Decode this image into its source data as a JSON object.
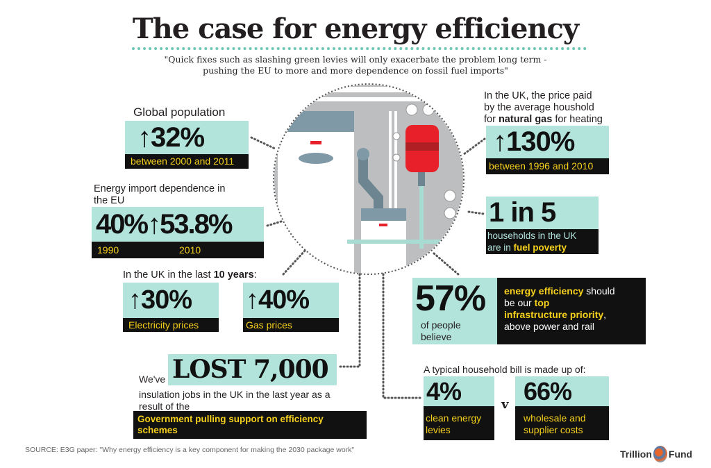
{
  "title": "The case for energy efficiency",
  "quote": [
    "\"Quick fixes such as slashing green levies will only exacerbate the problem long term -",
    "pushing the EU to more and more dependence on fossil fuel imports\""
  ],
  "population": {
    "label": "Global population",
    "value": "↑32%",
    "period": "between 2000 and 2011"
  },
  "gas_price": {
    "label_pre": "In the UK, the price paid",
    "label_mid": "by the average houshold",
    "label_for": "for ",
    "label_bold": "natural gas",
    "label_post": " for heating",
    "value": "↑130%",
    "period": "between 1996 and 2010"
  },
  "import": {
    "label": [
      "Energy import dependence in",
      "the EU"
    ],
    "value_from": "40%",
    "value_to": "↑53.8%",
    "year_from": "1990",
    "year_to": "2010"
  },
  "poverty": {
    "value": "1 in 5",
    "text_line1": "households in the UK",
    "text_pre": "are in ",
    "text_bold": "fuel poverty"
  },
  "ten_years": {
    "label_pre": "In the UK in the last ",
    "label_bold": "10 years",
    "label_post": ":",
    "electricity": {
      "value": "↑30%",
      "label": "Electricity prices"
    },
    "gas": {
      "value": "↑40%",
      "label": "Gas prices"
    }
  },
  "priority": {
    "value": "57%",
    "sub": [
      "of people",
      "believe"
    ],
    "bold1": "energy efficiency",
    "t1": " should",
    "t2": "be our ",
    "bold2": "top",
    "bold3": "infrastructure priority",
    "t3": ",",
    "t4": "above power and rail"
  },
  "jobs": {
    "prefix": "We've",
    "value": "LOST 7,000",
    "text": [
      "insulation jobs in the UK in the last year as a",
      "result of the"
    ],
    "cause": [
      "Government pulling support on efficiency",
      "schemes"
    ]
  },
  "bill": {
    "label": "A typical household bill is made up of:",
    "levies": {
      "value": "4%",
      "label": [
        "clean energy",
        "levies"
      ]
    },
    "versus": "v",
    "wholesale": {
      "value": "66%",
      "label": [
        "wholesale and",
        "supplier costs"
      ]
    }
  },
  "source": "SOURCE: E3G paper: \"Why energy efficiency is a key component for making the 2030 package work\"",
  "logo": {
    "left": "Trillion",
    "right": "Fund"
  },
  "colors": {
    "mint": "#b2e4dc",
    "black": "#111111",
    "yellow": "#f5d01c",
    "teal_dots": "#6cc7b5",
    "red": "#e8202a"
  }
}
